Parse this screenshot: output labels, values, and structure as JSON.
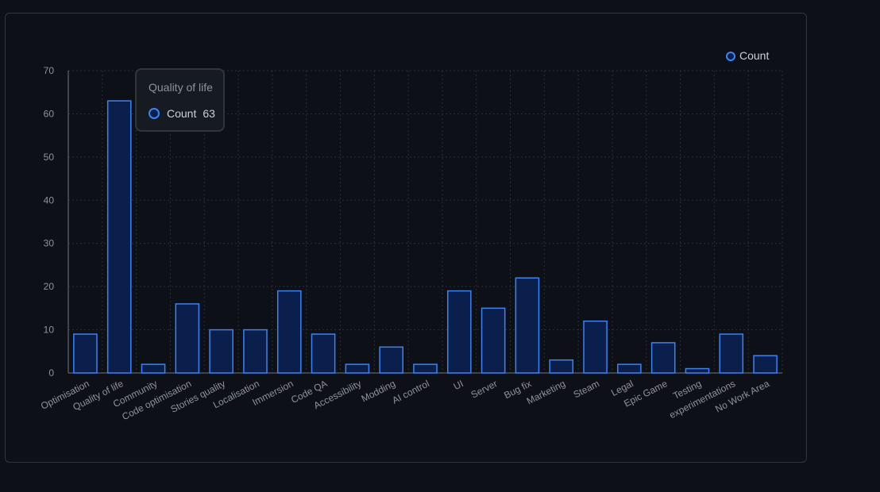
{
  "chart_data": {
    "type": "bar",
    "categories": [
      "Optimisation",
      "Quality of life",
      "Community",
      "Code optimisation",
      "Stories quality",
      "Localisation",
      "Immersion",
      "Code QA",
      "Accessibility",
      "Modding",
      "AI control",
      "UI",
      "Server",
      "Bug fix",
      "Marketing",
      "Steam",
      "Legal",
      "Epic Game",
      "Testing",
      "experimentations",
      "No Work Area"
    ],
    "series": [
      {
        "name": "Count",
        "values": [
          9,
          63,
          2,
          16,
          10,
          10,
          19,
          9,
          2,
          6,
          2,
          19,
          15,
          22,
          3,
          12,
          2,
          7,
          1,
          9,
          4
        ]
      }
    ],
    "ylim": [
      0,
      70
    ],
    "yticks": [
      0,
      10,
      20,
      30,
      40,
      50,
      60,
      70
    ],
    "grid": true,
    "legend": "top-right",
    "bar_fill": "#0b1f4d",
    "bar_stroke": "#3b82f6"
  },
  "tooltip": {
    "title": "Quality of life",
    "series_label": "Count",
    "value": "63"
  },
  "legend": {
    "label": "Count"
  }
}
